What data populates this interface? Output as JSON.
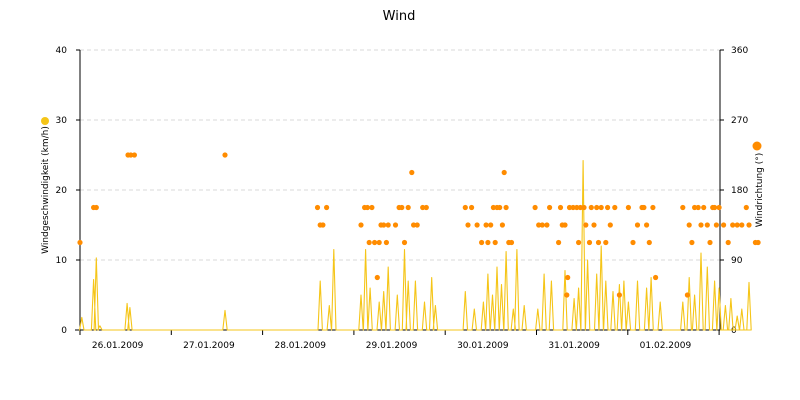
{
  "chart_data": {
    "type": "line",
    "title": "Wind",
    "x_labels": [
      "26.01.2009",
      "27.01.2009",
      "28.01.2009",
      "29.01.2009",
      "30.01.2009",
      "31.01.2009",
      "01.02.2009"
    ],
    "x_range_days": [
      0,
      7.06
    ],
    "y_left": {
      "label": "Windgeschwindigkeit (km/h)",
      "ticks": [
        "0",
        "10",
        "20",
        "30",
        "40"
      ],
      "range": [
        0,
        40
      ]
    },
    "y_right": {
      "label": "Windrichtung (°)",
      "ticks": [
        "0",
        "90",
        "180",
        "270",
        "360"
      ],
      "range": [
        0,
        360
      ]
    },
    "grid": true,
    "legend": "left and right of the plot, as colored dots next to the axis titles",
    "series": [
      {
        "name": "Windgeschwindigkeit (km/h)",
        "kind": "line",
        "color": "#f5c518",
        "axis": "left",
        "peaks": [
          [
            0.02,
            1.8
          ],
          [
            0.15,
            7.2
          ],
          [
            0.18,
            10.3
          ],
          [
            0.22,
            0.6
          ],
          [
            0.52,
            3.8
          ],
          [
            0.55,
            3.2
          ],
          [
            1.6,
            2.8
          ],
          [
            2.65,
            7.0
          ],
          [
            2.75,
            3.5
          ],
          [
            2.8,
            11.5
          ],
          [
            3.1,
            5.0
          ],
          [
            3.15,
            11.5
          ],
          [
            3.2,
            6.0
          ],
          [
            3.3,
            4.0
          ],
          [
            3.35,
            5.5
          ],
          [
            3.4,
            9.0
          ],
          [
            3.5,
            5.0
          ],
          [
            3.58,
            11.5
          ],
          [
            3.62,
            7.0
          ],
          [
            3.7,
            7.0
          ],
          [
            3.8,
            4.0
          ],
          [
            3.88,
            7.5
          ],
          [
            3.92,
            3.5
          ],
          [
            4.25,
            5.5
          ],
          [
            4.35,
            3.0
          ],
          [
            4.45,
            4.0
          ],
          [
            4.5,
            8.0
          ],
          [
            4.55,
            5.0
          ],
          [
            4.6,
            9.0
          ],
          [
            4.65,
            6.5
          ],
          [
            4.7,
            11.2
          ],
          [
            4.78,
            3.0
          ],
          [
            4.82,
            11.5
          ],
          [
            4.9,
            3.5
          ],
          [
            5.05,
            3.0
          ],
          [
            5.12,
            8.0
          ],
          [
            5.2,
            7.0
          ],
          [
            5.35,
            8.5
          ],
          [
            5.45,
            4.5
          ],
          [
            5.5,
            6.0
          ],
          [
            5.55,
            24.2
          ],
          [
            5.6,
            10.0
          ],
          [
            5.7,
            8.0
          ],
          [
            5.75,
            12.0
          ],
          [
            5.8,
            7.0
          ],
          [
            5.88,
            5.5
          ],
          [
            5.95,
            6.5
          ],
          [
            6.0,
            7.0
          ],
          [
            6.05,
            4.0
          ],
          [
            6.15,
            7.0
          ],
          [
            6.25,
            6.0
          ],
          [
            6.3,
            7.5
          ],
          [
            6.4,
            4.0
          ],
          [
            6.65,
            4.0
          ],
          [
            6.72,
            7.5
          ],
          [
            6.78,
            5.0
          ],
          [
            6.85,
            11.0
          ],
          [
            6.92,
            9.0
          ],
          [
            7.0,
            7.0
          ],
          [
            7.05,
            6.0
          ],
          [
            7.12,
            3.5
          ],
          [
            7.18,
            4.5
          ],
          [
            7.25,
            2.0
          ],
          [
            7.3,
            3.0
          ],
          [
            7.38,
            6.8
          ]
        ]
      },
      {
        "name": "Windrichtung (°)",
        "kind": "scatter",
        "color": "#ff8c00",
        "axis": "right",
        "points": [
          [
            0.0,
            112.5
          ],
          [
            0.15,
            157.5
          ],
          [
            0.18,
            157.5
          ],
          [
            0.53,
            225
          ],
          [
            0.56,
            225
          ],
          [
            0.6,
            225
          ],
          [
            1.6,
            225
          ],
          [
            2.62,
            157.5
          ],
          [
            2.65,
            135
          ],
          [
            2.68,
            135
          ],
          [
            2.72,
            157.5
          ],
          [
            3.1,
            135
          ],
          [
            3.14,
            157.5
          ],
          [
            3.17,
            157.5
          ],
          [
            3.19,
            112.5
          ],
          [
            3.22,
            157.5
          ],
          [
            3.25,
            112.5
          ],
          [
            3.28,
            67.5
          ],
          [
            3.3,
            112.5
          ],
          [
            3.32,
            135
          ],
          [
            3.35,
            135
          ],
          [
            3.38,
            112.5
          ],
          [
            3.4,
            135
          ],
          [
            3.48,
            135
          ],
          [
            3.52,
            157.5
          ],
          [
            3.55,
            157.5
          ],
          [
            3.58,
            112.5
          ],
          [
            3.62,
            157.5
          ],
          [
            3.66,
            202.5
          ],
          [
            3.68,
            135
          ],
          [
            3.72,
            135
          ],
          [
            3.78,
            157.5
          ],
          [
            3.82,
            157.5
          ],
          [
            4.25,
            157.5
          ],
          [
            4.28,
            135
          ],
          [
            4.32,
            157.5
          ],
          [
            4.38,
            135
          ],
          [
            4.43,
            112.5
          ],
          [
            4.48,
            135
          ],
          [
            4.5,
            112.5
          ],
          [
            4.53,
            135
          ],
          [
            4.56,
            157.5
          ],
          [
            4.58,
            112.5
          ],
          [
            4.6,
            157.5
          ],
          [
            4.63,
            157.5
          ],
          [
            4.66,
            135
          ],
          [
            4.68,
            202.5
          ],
          [
            4.7,
            157.5
          ],
          [
            4.73,
            112.5
          ],
          [
            4.76,
            112.5
          ],
          [
            5.02,
            157.5
          ],
          [
            5.06,
            135
          ],
          [
            5.1,
            135
          ],
          [
            5.15,
            135
          ],
          [
            5.18,
            157.5
          ],
          [
            5.28,
            112.5
          ],
          [
            5.3,
            157.5
          ],
          [
            5.32,
            135
          ],
          [
            5.35,
            135
          ],
          [
            5.37,
            45
          ],
          [
            5.38,
            67.5
          ],
          [
            5.4,
            157.5
          ],
          [
            5.44,
            157.5
          ],
          [
            5.48,
            157.5
          ],
          [
            5.5,
            112.5
          ],
          [
            5.52,
            157.5
          ],
          [
            5.56,
            157.5
          ],
          [
            5.58,
            135
          ],
          [
            5.62,
            112.5
          ],
          [
            5.64,
            157.5
          ],
          [
            5.67,
            135
          ],
          [
            5.7,
            157.5
          ],
          [
            5.72,
            112.5
          ],
          [
            5.75,
            157.5
          ],
          [
            5.8,
            112.5
          ],
          [
            5.82,
            157.5
          ],
          [
            5.85,
            135
          ],
          [
            5.9,
            157.5
          ],
          [
            5.95,
            45
          ],
          [
            6.05,
            157.5
          ],
          [
            6.1,
            112.5
          ],
          [
            6.15,
            135
          ],
          [
            6.2,
            157.5
          ],
          [
            6.22,
            157.5
          ],
          [
            6.25,
            135
          ],
          [
            6.28,
            112.5
          ],
          [
            6.32,
            157.5
          ],
          [
            6.35,
            67.5
          ],
          [
            6.65,
            157.5
          ],
          [
            6.7,
            45
          ],
          [
            6.72,
            135
          ],
          [
            6.75,
            112.5
          ],
          [
            6.78,
            157.5
          ],
          [
            6.82,
            157.5
          ],
          [
            6.85,
            135
          ],
          [
            6.88,
            157.5
          ],
          [
            6.92,
            135
          ],
          [
            6.95,
            112.5
          ],
          [
            6.98,
            157.5
          ],
          [
            7.0,
            157.5
          ],
          [
            7.02,
            135
          ],
          [
            7.05,
            157.5
          ],
          [
            7.1,
            135
          ],
          [
            7.15,
            112.5
          ],
          [
            7.2,
            135
          ],
          [
            7.25,
            135
          ],
          [
            7.3,
            135
          ],
          [
            7.35,
            157.5
          ],
          [
            7.38,
            135
          ],
          [
            7.45,
            112.5
          ],
          [
            7.48,
            112.5
          ]
        ]
      }
    ]
  }
}
